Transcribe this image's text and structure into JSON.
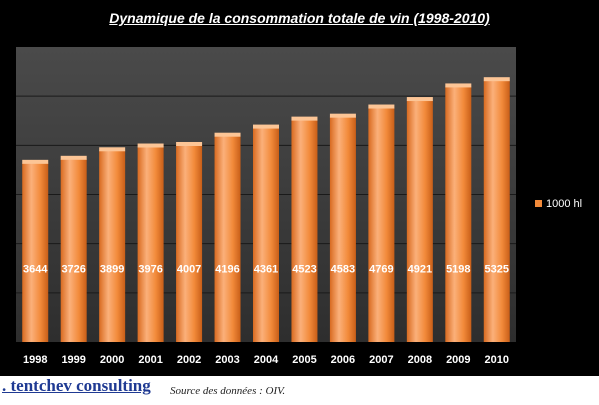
{
  "chart_data": {
    "type": "bar",
    "title": "Dynamique de la consommation totale de vin (1998-2010)",
    "categories": [
      "1998",
      "1999",
      "2000",
      "2001",
      "2002",
      "2003",
      "2004",
      "2005",
      "2006",
      "2007",
      "2008",
      "2009",
      "2010"
    ],
    "series": [
      {
        "name": "1000 hl",
        "values": [
          3644,
          3726,
          3899,
          3976,
          4007,
          4196,
          4361,
          4523,
          4583,
          4769,
          4921,
          5198,
          5325
        ]
      }
    ],
    "ylim": [
      0,
      6000
    ],
    "grid": true,
    "legend": "right",
    "colors": {
      "bar": "#f28a3a",
      "bar_light": "#f9b47a",
      "bar_dark": "#d0661c",
      "plot_bg": "#3c3c3c",
      "grid": "#1a1a1a"
    }
  },
  "footer": {
    "brand": ". tentchev consulting",
    "source": "Source des données : OIV."
  }
}
